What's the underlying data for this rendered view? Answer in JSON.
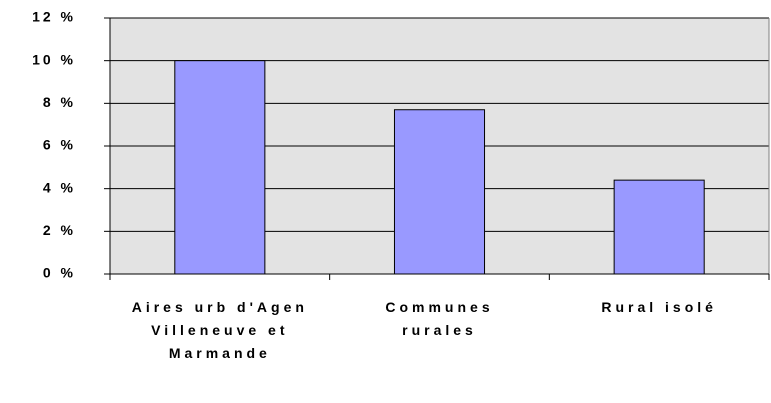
{
  "chart_data": {
    "type": "bar",
    "categories": [
      "Aires urb d'Agen Villeneuve et Marmande",
      "Communes rurales",
      "Rural isolé"
    ],
    "values": [
      10,
      7.7,
      4.4
    ],
    "color": "#9999ff",
    "ylim": [
      0,
      12
    ],
    "yticks": [
      {
        "value": 0,
        "label": "0 %"
      },
      {
        "value": 2,
        "label": "2 %"
      },
      {
        "value": 4,
        "label": "4 %"
      },
      {
        "value": 6,
        "label": "6 %"
      },
      {
        "value": 8,
        "label": "8 %"
      },
      {
        "value": 10,
        "label": "10 %"
      },
      {
        "value": 12,
        "label": "12 %"
      }
    ],
    "grid": true
  }
}
